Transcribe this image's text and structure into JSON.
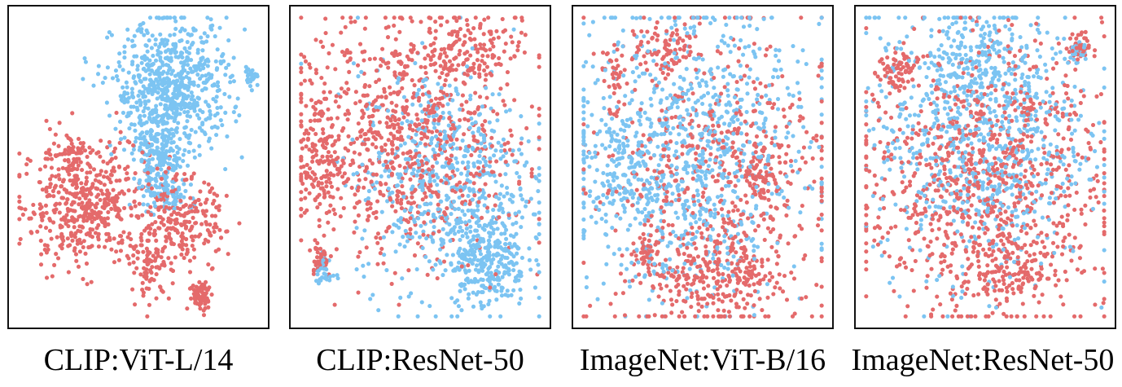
{
  "colors": {
    "red": "#e46a6b",
    "blue": "#7cc4f2"
  },
  "chart_data": [
    {
      "type": "scatter",
      "title": "CLIP:ViT-L/14",
      "xlim": [
        0,
        100
      ],
      "ylim": [
        0,
        100
      ],
      "series": [
        {
          "name": "red",
          "clusters": [
            {
              "cx": 28,
              "cy": 38,
              "sx": 13,
              "sy": 10,
              "n": 500
            },
            {
              "cx": 68,
              "cy": 31,
              "sx": 9,
              "sy": 8,
              "n": 230
            },
            {
              "cx": 55,
              "cy": 17,
              "sx": 4,
              "sy": 5,
              "n": 75
            },
            {
              "cx": 76,
              "cy": 8,
              "sx": 2.5,
              "sy": 2.5,
              "n": 70
            },
            {
              "cx": 22,
              "cy": 56,
              "sx": 4,
              "sy": 3,
              "n": 40
            }
          ]
        },
        {
          "name": "blue",
          "clusters": [
            {
              "cx": 64,
              "cy": 76,
              "sx": 12,
              "sy": 11,
              "n": 700
            },
            {
              "cx": 58,
              "cy": 52,
              "sx": 5,
              "sy": 6,
              "n": 180
            },
            {
              "cx": 62,
              "cy": 40,
              "sx": 5,
              "sy": 2.5,
              "n": 60
            },
            {
              "cx": 96,
              "cy": 80,
              "sx": 1.5,
              "sy": 1.2,
              "n": 30
            }
          ]
        }
      ]
    },
    {
      "type": "scatter",
      "title": "CLIP:ResNet-50",
      "xlim": [
        0,
        100
      ],
      "ylim": [
        0,
        100
      ],
      "series": [
        {
          "name": "red",
          "clusters": [
            {
              "cx": 45,
              "cy": 60,
              "sx": 23,
              "sy": 20,
              "n": 850
            },
            {
              "cx": 68,
              "cy": 88,
              "sx": 12,
              "sy": 5,
              "n": 120
            },
            {
              "cx": 9,
              "cy": 52,
              "sx": 4,
              "sy": 12,
              "n": 120
            },
            {
              "cx": 9,
              "cy": 20,
              "sx": 2.5,
              "sy": 3,
              "n": 40
            },
            {
              "cx": 20,
              "cy": 87,
              "sx": 1,
              "sy": 1.5,
              "n": 8
            }
          ]
        },
        {
          "name": "blue",
          "clusters": [
            {
              "cx": 60,
              "cy": 46,
              "sx": 18,
              "sy": 18,
              "n": 600
            },
            {
              "cx": 78,
              "cy": 20,
              "sx": 8,
              "sy": 8,
              "n": 280
            },
            {
              "cx": 11,
              "cy": 15,
              "sx": 2,
              "sy": 2.5,
              "n": 30
            }
          ]
        }
      ]
    },
    {
      "type": "scatter",
      "title": "ImageNet:ViT-B/16",
      "xlim": [
        0,
        100
      ],
      "ylim": [
        0,
        100
      ],
      "series": [
        {
          "name": "red",
          "clusters": [
            {
              "cx": 55,
              "cy": 45,
              "sx": 24,
              "sy": 25,
              "n": 600
            },
            {
              "cx": 57,
              "cy": 14,
              "sx": 13,
              "sy": 6,
              "n": 200
            },
            {
              "cx": 34,
              "cy": 89,
              "sx": 6,
              "sy": 4,
              "n": 80
            },
            {
              "cx": 74,
              "cy": 48,
              "sx": 3,
              "sy": 4,
              "n": 50
            },
            {
              "cx": 26,
              "cy": 21,
              "sx": 3,
              "sy": 3,
              "n": 40
            },
            {
              "cx": 14,
              "cy": 80,
              "sx": 3,
              "sy": 6,
              "n": 40
            }
          ]
        },
        {
          "name": "blue",
          "clusters": [
            {
              "cx": 45,
              "cy": 55,
              "sx": 24,
              "sy": 24,
              "n": 900
            },
            {
              "cx": 18,
              "cy": 50,
              "sx": 8,
              "sy": 10,
              "n": 120
            }
          ]
        }
      ]
    },
    {
      "type": "scatter",
      "title": "ImageNet:ResNet-50",
      "xlim": [
        0,
        100
      ],
      "ylim": [
        0,
        100
      ],
      "series": [
        {
          "name": "red",
          "clusters": [
            {
              "cx": 50,
              "cy": 45,
              "sx": 25,
              "sy": 22,
              "n": 950
            },
            {
              "cx": 14,
              "cy": 81,
              "sx": 4,
              "sy": 4,
              "n": 70
            },
            {
              "cx": 88,
              "cy": 89,
              "sx": 2.5,
              "sy": 2.5,
              "n": 40
            },
            {
              "cx": 60,
              "cy": 15,
              "sx": 9,
              "sy": 5,
              "n": 100
            }
          ]
        },
        {
          "name": "blue",
          "clusters": [
            {
              "cx": 48,
              "cy": 60,
              "sx": 22,
              "sy": 22,
              "n": 800
            },
            {
              "cx": 48,
              "cy": 86,
              "sx": 14,
              "sy": 7,
              "n": 150
            },
            {
              "cx": 88,
              "cy": 88,
              "sx": 2,
              "sy": 2,
              "n": 30
            }
          ]
        }
      ]
    }
  ]
}
